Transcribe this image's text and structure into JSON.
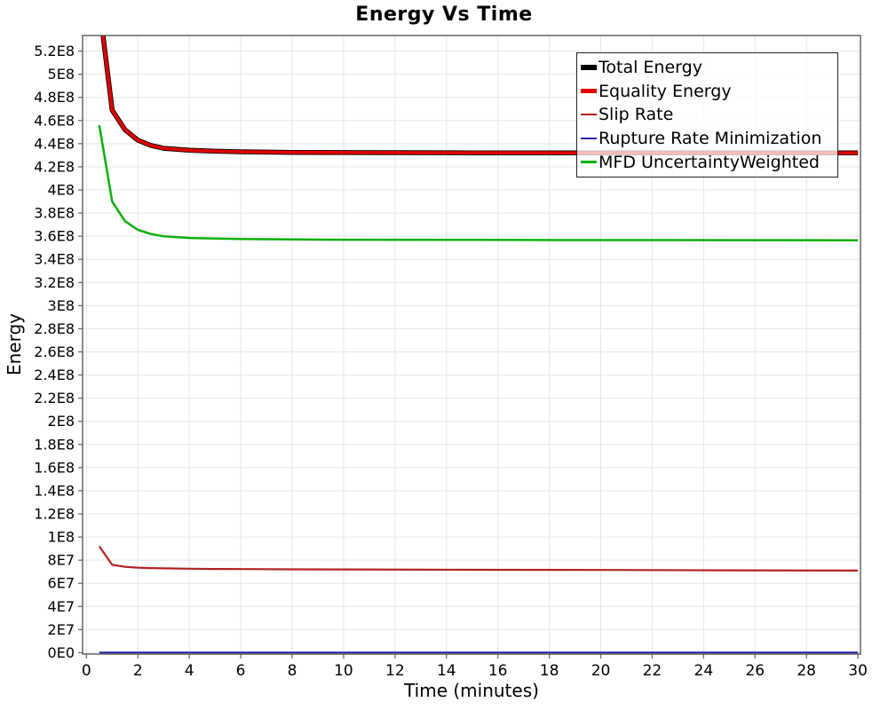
{
  "title": "Energy Vs Time",
  "axes": {
    "x_label": "Time (minutes)",
    "y_label": "Energy"
  },
  "colors": {
    "grid": "#e6e6e6",
    "plot_border": "#4d4d4d",
    "tick": "#666666",
    "legend_border": "#222222"
  },
  "chart_data": {
    "type": "line",
    "title": "Energy Vs Time",
    "xlabel": "Time (minutes)",
    "ylabel": "Energy",
    "xlim": [
      0,
      30
    ],
    "ylim": [
      0,
      520000000
    ],
    "grid": true,
    "legend_position": "top-right-inside",
    "x_ticks": [
      0,
      2,
      4,
      6,
      8,
      10,
      12,
      14,
      16,
      18,
      20,
      22,
      24,
      26,
      28,
      30
    ],
    "x_tick_labels": [
      "0",
      "2",
      "4",
      "6",
      "8",
      "10",
      "12",
      "14",
      "16",
      "18",
      "20",
      "22",
      "24",
      "26",
      "28",
      "30"
    ],
    "y_tick_values": [
      0,
      20000000.0,
      40000000.0,
      60000000.0,
      80000000.0,
      100000000.0,
      120000000.0,
      140000000.0,
      160000000.0,
      180000000.0,
      200000000.0,
      220000000.0,
      240000000.0,
      260000000.0,
      280000000.0,
      300000000.0,
      320000000.0,
      340000000.0,
      360000000.0,
      380000000.0,
      400000000.0,
      420000000.0,
      440000000.0,
      460000000.0,
      480000000.0,
      500000000.0,
      520000000.0
    ],
    "y_tick_labels": [
      "0E0",
      "2E7",
      "4E7",
      "6E7",
      "8E7",
      "1E8",
      "1.2E8",
      "1.4E8",
      "1.6E8",
      "1.8E8",
      "2E8",
      "2.2E8",
      "2.4E8",
      "2.6E8",
      "2.8E8",
      "3E8",
      "3.2E8",
      "3.4E8",
      "3.6E8",
      "3.8E8",
      "4E8",
      "4.2E8",
      "4.4E8",
      "4.6E8",
      "4.8E8",
      "5E8",
      "5.2E8"
    ],
    "x": [
      0.5,
      1,
      1.5,
      2,
      2.5,
      3,
      4,
      5,
      6,
      8,
      10,
      15,
      20,
      25,
      30
    ],
    "series": [
      {
        "name": "Total Energy",
        "color": "#000000",
        "line_width": 5.5,
        "swatch_height": 6,
        "values": [
          560000000.0,
          469000000.0,
          452000000.0,
          443000000.0,
          438500000.0,
          436000000.0,
          434300000.0,
          433500000.0,
          433000000.0,
          432500000.0,
          432300000.0,
          432100000.0,
          432000000.0,
          432000000.0,
          432000000.0
        ]
      },
      {
        "name": "Equality Energy",
        "color": "#e00000",
        "line_width": 3.8,
        "swatch_height": 5,
        "values": [
          560000000.0,
          469000000.0,
          452000000.0,
          443000000.0,
          438500000.0,
          436000000.0,
          434300000.0,
          433500000.0,
          433000000.0,
          432500000.0,
          432300000.0,
          432100000.0,
          432000000.0,
          432000000.0,
          432000000.0
        ]
      },
      {
        "name": "Slip Rate",
        "color": "#b22222",
        "line_width": 2.2,
        "swatch_height": 2,
        "values": [
          92000000.0,
          76000000.0,
          74200000.0,
          73500000.0,
          73100000.0,
          72900000.0,
          72600000.0,
          72400000.0,
          72300000.0,
          72100000.0,
          72000000.0,
          71700000.0,
          71500000.0,
          71200000.0,
          71000000.0
        ]
      },
      {
        "name": "Rupture Rate Minimization",
        "color": "#2222aa",
        "line_width": 2,
        "swatch_height": 2,
        "values": [
          200000.0,
          200000.0,
          200000.0,
          200000.0,
          200000.0,
          200000.0,
          200000.0,
          200000.0,
          200000.0,
          200000.0,
          200000.0,
          200000.0,
          200000.0,
          200000.0,
          200000.0
        ]
      },
      {
        "name": "MFD UncertaintyWeighted",
        "color": "#0cb00c",
        "line_width": 2.5,
        "swatch_height": 3,
        "values": [
          456000000.0,
          390000000.0,
          373000000.0,
          365500000.0,
          362000000.0,
          360000000.0,
          358500000.0,
          358000000.0,
          357600000.0,
          357200000.0,
          357000000.0,
          356800000.0,
          356700000.0,
          356600000.0,
          356500000.0
        ]
      }
    ]
  }
}
